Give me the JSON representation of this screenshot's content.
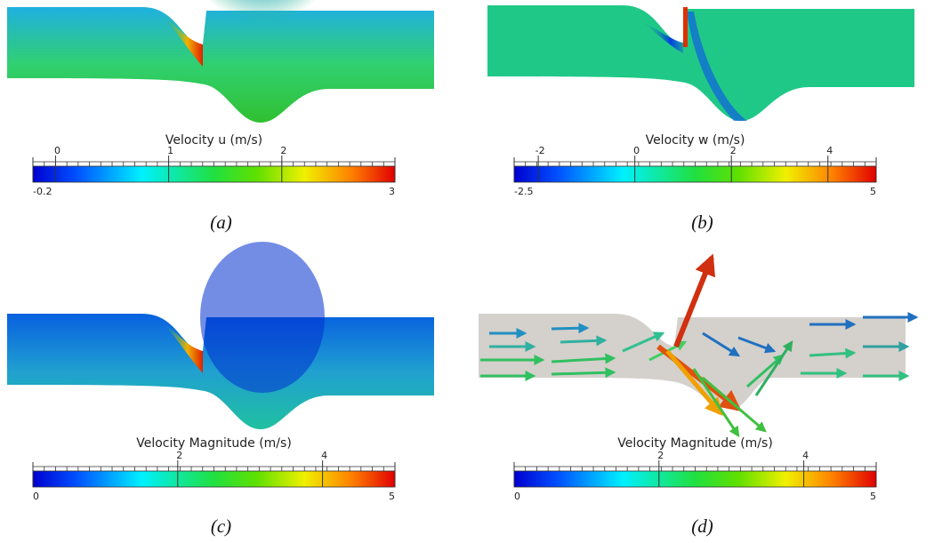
{
  "panels": [
    {
      "caption": "(a)",
      "colorbar": {
        "title": "Velocity u (m/s)",
        "min": -0.2,
        "max": 3,
        "ticks": [
          0,
          1,
          2
        ]
      }
    },
    {
      "caption": "(b)",
      "colorbar": {
        "title": "Velocity w (m/s)",
        "min": -2.5,
        "max": 5,
        "ticks": [
          -2,
          0,
          2,
          4
        ]
      }
    },
    {
      "caption": "(c)",
      "colorbar": {
        "title": "Velocity Magnitude (m/s)",
        "min": 0,
        "max": 5,
        "ticks": [
          2,
          4
        ]
      }
    },
    {
      "caption": "(d)",
      "colorbar": {
        "title": "Velocity Magnitude (m/s)",
        "min": 0,
        "max": 5,
        "ticks": [
          2,
          4
        ]
      }
    }
  ]
}
